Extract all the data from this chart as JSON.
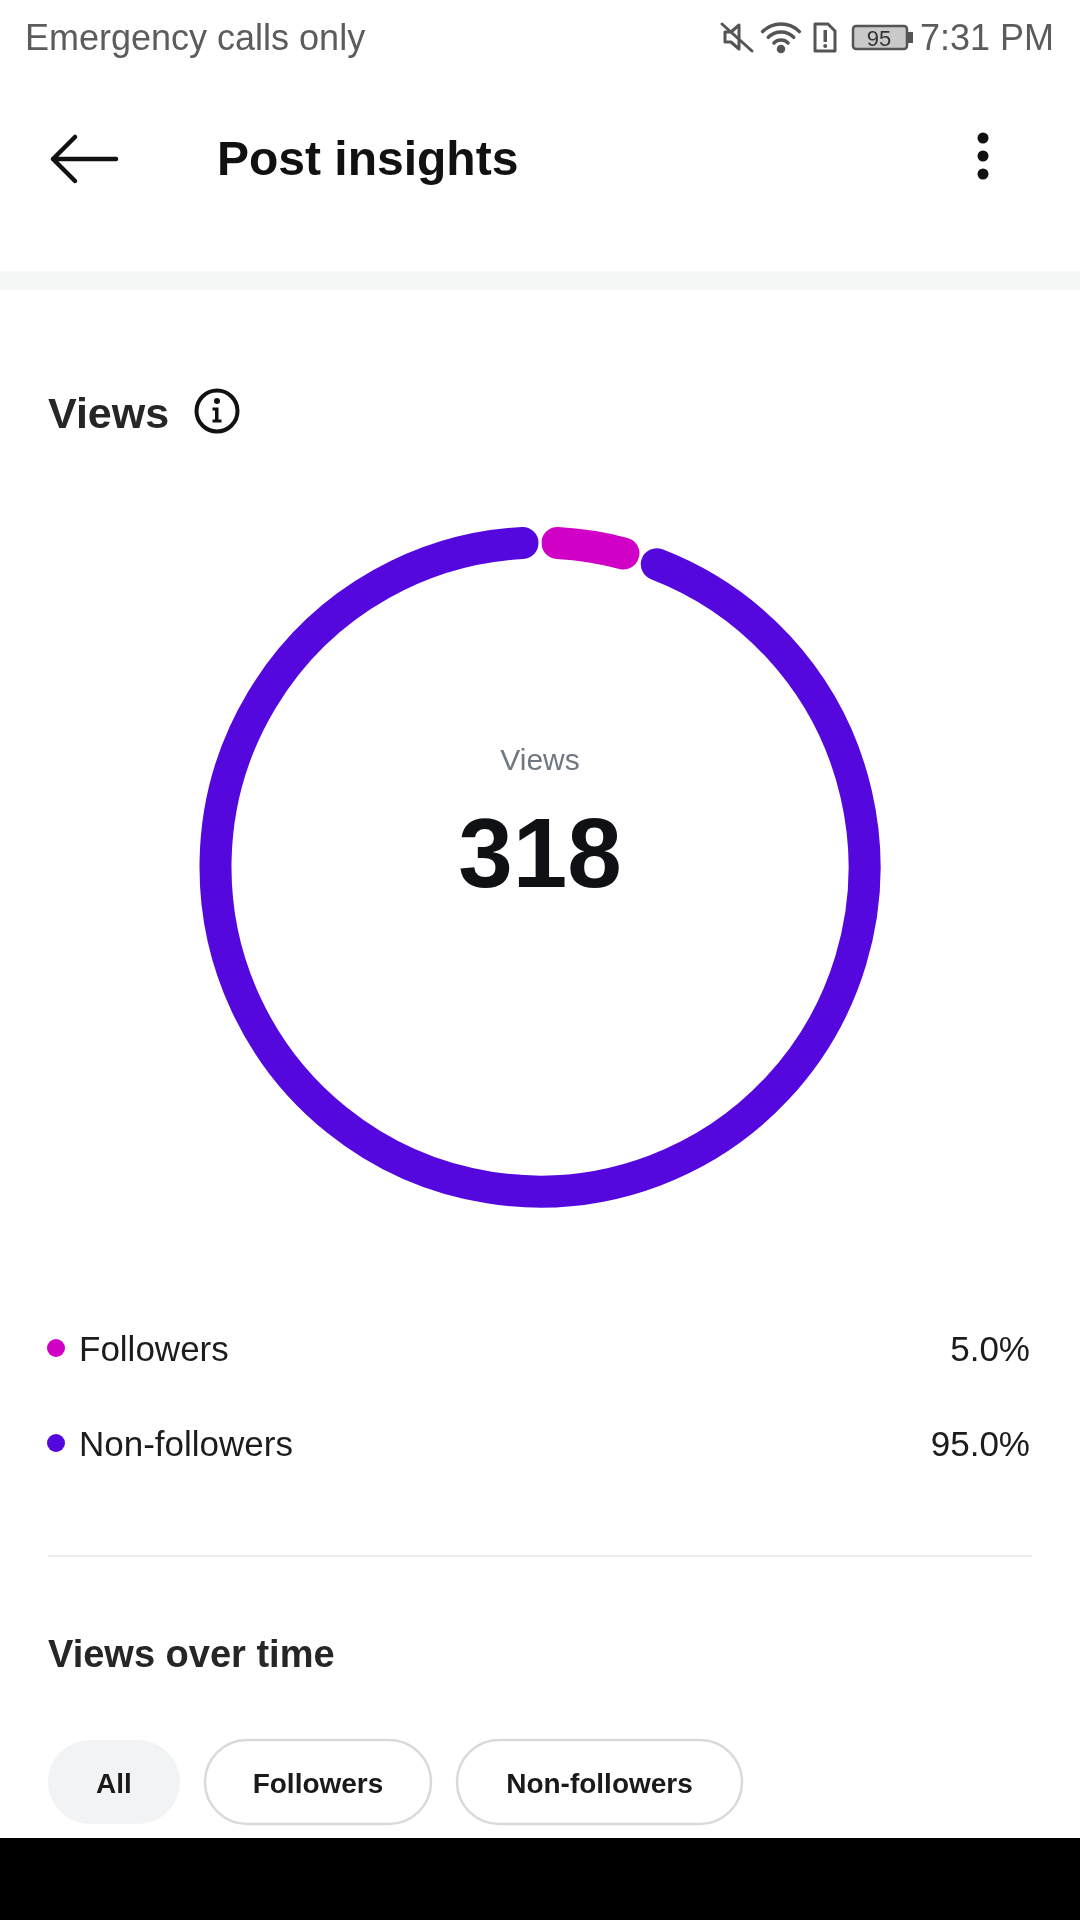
{
  "chart_data": {
    "type": "donut",
    "title": "Views",
    "categories": [
      "Followers",
      "Non-followers"
    ],
    "values": [
      5.0,
      95.0
    ],
    "colors": [
      "#d100c6",
      "#5408dd"
    ],
    "value_labels": [
      "5.0%",
      "95.0%"
    ],
    "legend": "bottom",
    "annotations": [
      "Emergency calls only",
      "7:31 PM",
      "95",
      "Post insights",
      "Views",
      "318",
      "Views over time",
      "All",
      "Followers",
      "Non-followers"
    ]
  }
}
